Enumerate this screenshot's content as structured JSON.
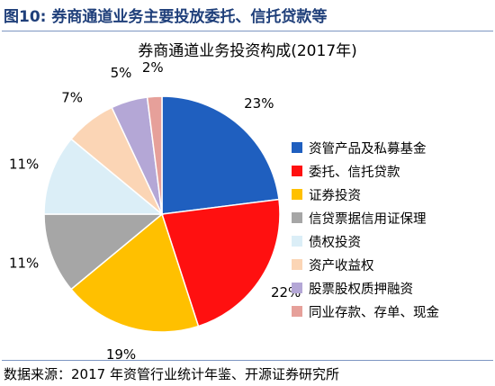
{
  "figure": {
    "title": "图10:  券商通道业务主要投放委托、信托贷款等",
    "source": "数据来源：2017 年资管行业统计年鉴、开源证券研究所"
  },
  "chart_data": {
    "type": "pie",
    "title": "券商通道业务投资构成(2017年)",
    "legend_position": "right",
    "slices": [
      {
        "label": "资管产品及私募基金",
        "value": 23,
        "display": "23%",
        "color": "#1f5fbf"
      },
      {
        "label": "委托、信托贷款",
        "value": 22,
        "display": "22%",
        "color": "#ff1010"
      },
      {
        "label": "证券投资",
        "value": 19,
        "display": "19%",
        "color": "#ffc000"
      },
      {
        "label": "信贷票据信用证保理",
        "value": 11,
        "display": "11%",
        "color": "#a6a6a6"
      },
      {
        "label": "债权投资",
        "value": 11,
        "display": "11%",
        "color": "#dbeef7"
      },
      {
        "label": "资产收益权",
        "value": 7,
        "display": "7%",
        "color": "#fbd5b5"
      },
      {
        "label": "股票股权质押融资",
        "value": 5,
        "display": "5%",
        "color": "#b4a7d6"
      },
      {
        "label": "同业存款、存单、现金",
        "value": 2,
        "display": "2%",
        "color": "#e6a09a"
      }
    ]
  }
}
